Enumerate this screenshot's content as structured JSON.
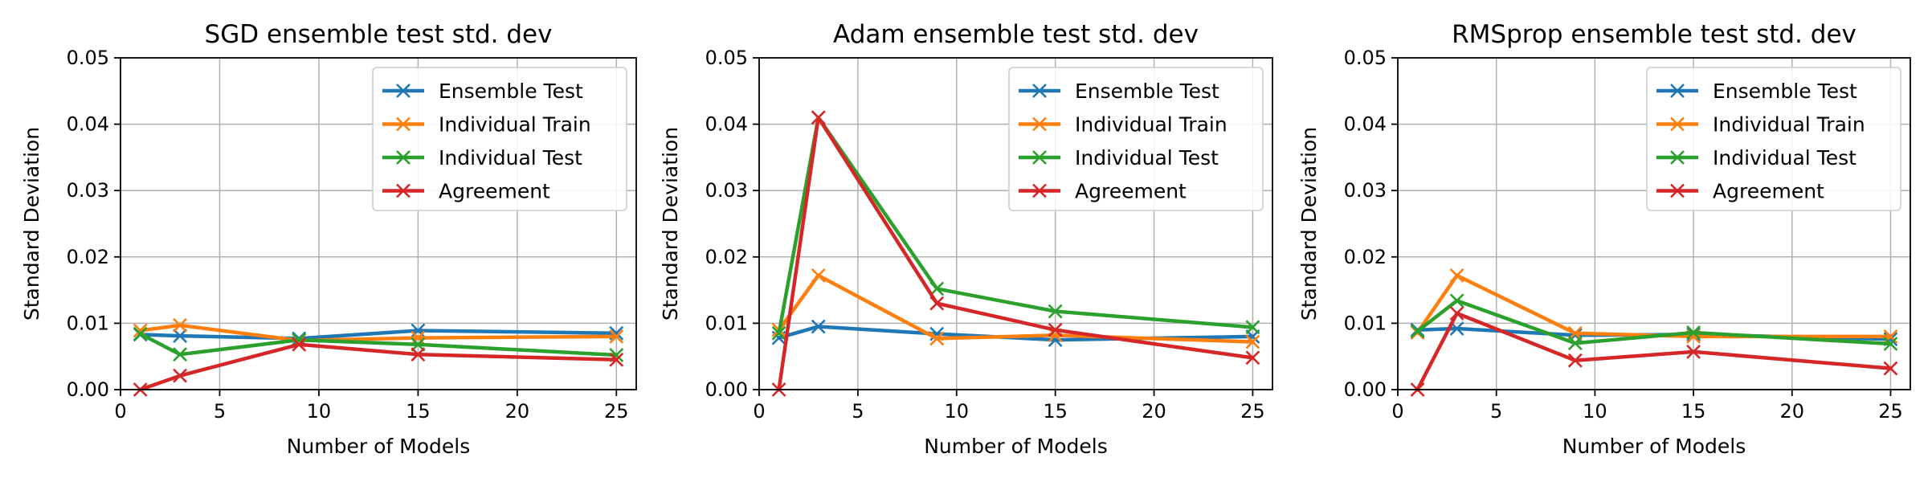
{
  "chart_data": [
    {
      "type": "line",
      "title": "SGD ensemble test std. dev",
      "xlabel": "Number of Models",
      "ylabel": "Standard Deviation",
      "xlim": [
        0,
        26
      ],
      "ylim": [
        0,
        0.05
      ],
      "xticks": [
        "0",
        "5",
        "10",
        "15",
        "20",
        "25"
      ],
      "yticks": [
        "0.00",
        "0.01",
        "0.02",
        "0.03",
        "0.04",
        "0.05"
      ],
      "grid": true,
      "legend": "top-right",
      "x": [
        1,
        3,
        9,
        15,
        25
      ],
      "series": [
        {
          "name": "Ensemble Test",
          "color": "#1f77b4",
          "values": [
            0.0083,
            0.0081,
            0.0077,
            0.0089,
            0.0085
          ]
        },
        {
          "name": "Individual Train",
          "color": "#ff7f0e",
          "values": [
            0.0089,
            0.0097,
            0.0074,
            0.0078,
            0.008
          ]
        },
        {
          "name": "Individual Test",
          "color": "#2ca02c",
          "values": [
            0.0084,
            0.0053,
            0.0075,
            0.0068,
            0.0052
          ]
        },
        {
          "name": "Agreement",
          "color": "#d62728",
          "values": [
            0.0,
            0.0021,
            0.0068,
            0.0053,
            0.0045
          ]
        }
      ]
    },
    {
      "type": "line",
      "title": "Adam ensemble test std. dev",
      "xlabel": "Number of Models",
      "ylabel": "Standard Deviation",
      "xlim": [
        0,
        26
      ],
      "ylim": [
        0,
        0.05
      ],
      "xticks": [
        "0",
        "5",
        "10",
        "15",
        "20",
        "25"
      ],
      "yticks": [
        "0.00",
        "0.01",
        "0.02",
        "0.03",
        "0.04",
        "0.05"
      ],
      "grid": true,
      "legend": "top-right",
      "x": [
        1,
        3,
        9,
        15,
        25
      ],
      "series": [
        {
          "name": "Ensemble Test",
          "color": "#1f77b4",
          "values": [
            0.0078,
            0.0095,
            0.0084,
            0.0075,
            0.008
          ]
        },
        {
          "name": "Individual Train",
          "color": "#ff7f0e",
          "values": [
            0.009,
            0.0172,
            0.0077,
            0.0082,
            0.0072
          ]
        },
        {
          "name": "Individual Test",
          "color": "#2ca02c",
          "values": [
            0.0085,
            0.041,
            0.0152,
            0.0118,
            0.0094
          ]
        },
        {
          "name": "Agreement",
          "color": "#d62728",
          "values": [
            0.0,
            0.041,
            0.013,
            0.009,
            0.0048
          ]
        }
      ]
    },
    {
      "type": "line",
      "title": "RMSprop ensemble test std. dev",
      "xlabel": "Number of Models",
      "ylabel": "Standard Deviation",
      "xlim": [
        0,
        26
      ],
      "ylim": [
        0,
        0.05
      ],
      "xticks": [
        "0",
        "5",
        "10",
        "15",
        "20",
        "25"
      ],
      "yticks": [
        "0.00",
        "0.01",
        "0.02",
        "0.03",
        "0.04",
        "0.05"
      ],
      "grid": true,
      "legend": "top-right",
      "x": [
        1,
        3,
        9,
        15,
        25
      ],
      "series": [
        {
          "name": "Ensemble Test",
          "color": "#1f77b4",
          "values": [
            0.009,
            0.0092,
            0.0082,
            0.0083,
            0.0076
          ]
        },
        {
          "name": "Individual Train",
          "color": "#ff7f0e",
          "values": [
            0.0086,
            0.0172,
            0.0085,
            0.008,
            0.008
          ]
        },
        {
          "name": "Individual Test",
          "color": "#2ca02c",
          "values": [
            0.0088,
            0.0134,
            0.007,
            0.0086,
            0.0069
          ]
        },
        {
          "name": "Agreement",
          "color": "#d62728",
          "values": [
            0.0,
            0.0115,
            0.0044,
            0.0057,
            0.0032
          ]
        }
      ]
    }
  ]
}
